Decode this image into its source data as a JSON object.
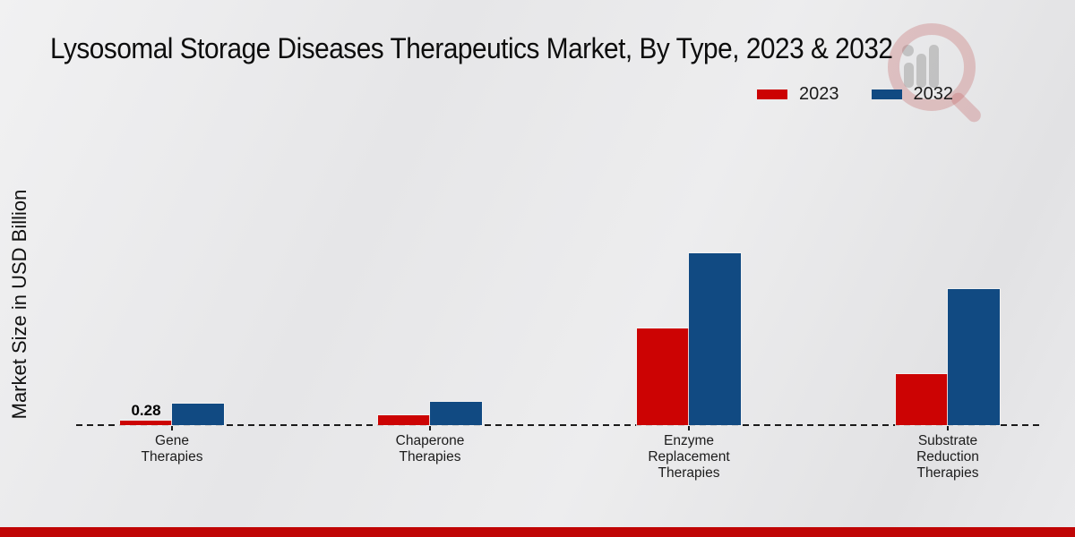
{
  "title": "Lysosomal Storage Diseases Therapeutics Market, By Type, 2023 & 2032",
  "y_axis_label": "Market Size in USD Billion",
  "colors": {
    "series_2023": "#cc0303",
    "series_2032": "#114a82",
    "footer_bar": "#c00505",
    "background": "#e9e9eb",
    "baseline": "#1a1a1a"
  },
  "watermark": {
    "description": "faint magnifying-glass logo with bar-chart figure"
  },
  "chart_data": {
    "type": "bar",
    "title": "Lysosomal Storage Diseases Therapeutics Market, By Type, 2023 & 2032",
    "ylabel": "Market Size in USD Billion",
    "xlabel": "",
    "categories": [
      "Gene Therapies",
      "Chaperone Therapies",
      "Enzyme Replacement Therapies",
      "Substrate Reduction Therapies"
    ],
    "series": [
      {
        "name": "2023",
        "color": "#cc0303",
        "values": [
          0.28,
          0.6,
          5.7,
          3.0
        ]
      },
      {
        "name": "2032",
        "color": "#114a82",
        "values": [
          1.25,
          1.35,
          10.1,
          8.0
        ]
      }
    ],
    "annotations": [
      {
        "category_index": 0,
        "series_index": 0,
        "text": "0.28"
      }
    ],
    "ylim": [
      0,
      11
    ],
    "grid": false,
    "legend_position": "top-right",
    "baseline_style": "dashed"
  }
}
